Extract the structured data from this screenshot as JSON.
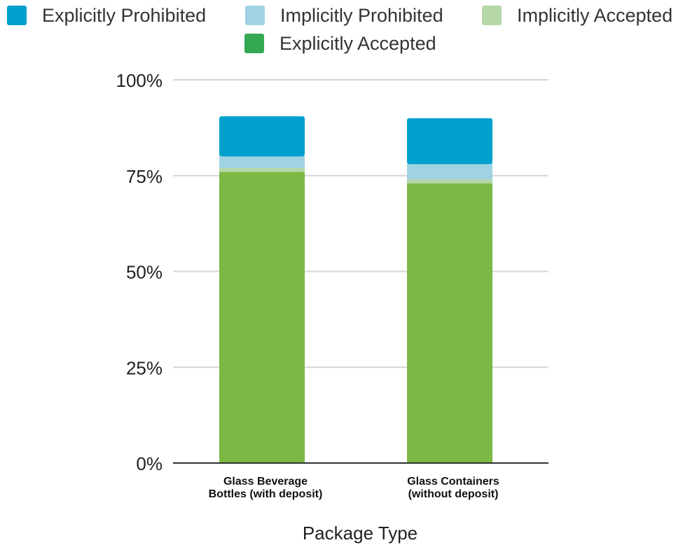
{
  "chart_data": {
    "type": "bar",
    "stacked": true,
    "title": "",
    "xlabel": "Package Type",
    "ylabel": "",
    "ylim": [
      0,
      1
    ],
    "yticks": [
      "0%",
      "25%",
      "50%",
      "75%",
      "100%"
    ],
    "ytick_values": [
      0,
      0.25,
      0.5,
      0.75,
      1.0
    ],
    "grid": true,
    "legend_position": "top",
    "categories": [
      [
        "Glass Beverage",
        "Bottles (with deposit)"
      ],
      [
        "Glass Containers",
        " (without deposit)"
      ]
    ],
    "series": [
      {
        "name": "Explicitly Accepted",
        "color": "#7cb844",
        "legend_color": "#34a853",
        "values": [
          0.76,
          0.73
        ]
      },
      {
        "name": "Implicitly Accepted",
        "color": "#b6d7a8",
        "values": [
          0.01,
          0.01
        ]
      },
      {
        "name": "Implicitly Prohibited",
        "color": "#9fd3e3",
        "values": [
          0.03,
          0.04
        ]
      },
      {
        "name": "Explicitly Prohibited",
        "color": "#00a0cc",
        "values": [
          0.105,
          0.12
        ]
      }
    ]
  },
  "legend": [
    {
      "label": "Explicitly Prohibited",
      "color": "#00a0cc"
    },
    {
      "label": "Implicitly Prohibited",
      "color": "#9fd3e3"
    },
    {
      "label": "Implicitly Accepted",
      "color": "#b6d7a8"
    },
    {
      "label": "Explicitly Accepted",
      "color": "#34a853"
    }
  ]
}
